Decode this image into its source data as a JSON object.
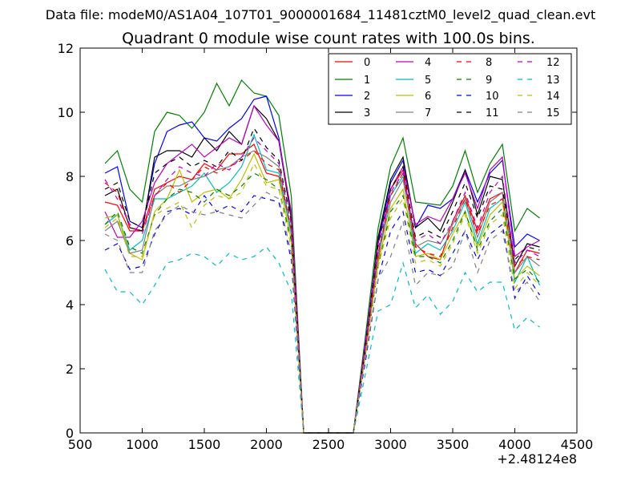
{
  "suptitle": "Data file: modeM0/AS1A04_107T01_9000001684_11481cztM0_level2_quad_clean.evt",
  "chart_data": {
    "type": "line",
    "title": "Quadrant 0 module wise count rates with 100.0s bins.",
    "xlabel": "",
    "ylabel": "",
    "x_offset_label": "+2.48124e8",
    "xlim": [
      500,
      4500
    ],
    "ylim": [
      0,
      12
    ],
    "xticks": [
      500,
      1000,
      1500,
      2000,
      2500,
      3000,
      3500,
      4000,
      4500
    ],
    "yticks": [
      0,
      2,
      4,
      6,
      8,
      10,
      12
    ],
    "grid": false,
    "legend_position": "top-right",
    "x": [
      700,
      800,
      900,
      1000,
      1100,
      1200,
      1300,
      1400,
      1500,
      1600,
      1700,
      1800,
      1900,
      2000,
      2100,
      2200,
      2300,
      2400,
      2500,
      2600,
      2700,
      2800,
      2900,
      3000,
      3100,
      3200,
      3300,
      3400,
      3500,
      3600,
      3700,
      3800,
      3900,
      4000,
      4100,
      4200
    ],
    "series": [
      {
        "name": "0",
        "color": "#ff0000",
        "dash": "solid",
        "values": [
          7.2,
          7.1,
          6.3,
          6.3,
          7.6,
          7.8,
          8.0,
          7.9,
          8.4,
          8.2,
          8.7,
          8.7,
          9.0,
          8.1,
          8.0,
          6.3,
          0,
          0,
          0,
          0,
          0,
          2.6,
          5.4,
          7.6,
          8.2,
          5.9,
          5.5,
          5.4,
          6.6,
          7.4,
          6.3,
          7.3,
          7.5,
          5.0,
          5.7,
          5.6
        ]
      },
      {
        "name": "1",
        "color": "#008000",
        "dash": "solid",
        "values": [
          8.4,
          8.8,
          7.6,
          7.2,
          9.4,
          10.0,
          9.9,
          9.5,
          10.0,
          10.9,
          10.2,
          11.0,
          10.6,
          10.5,
          9.9,
          7.4,
          0,
          0,
          0,
          0,
          0,
          3.1,
          6.4,
          8.3,
          9.2,
          7.2,
          7.15,
          7.1,
          7.7,
          8.8,
          7.5,
          8.4,
          9.0,
          6.3,
          7.0,
          6.7
        ]
      },
      {
        "name": "2",
        "color": "#0000ff",
        "dash": "solid",
        "values": [
          8.1,
          8.3,
          6.6,
          6.4,
          8.4,
          9.4,
          9.6,
          9.7,
          9.2,
          9.1,
          9.5,
          9.8,
          10.4,
          10.5,
          9.2,
          6.8,
          0,
          0,
          0,
          0,
          0,
          2.9,
          6.0,
          7.8,
          8.5,
          6.4,
          7.1,
          7.0,
          7.3,
          8.2,
          7.2,
          8.1,
          8.5,
          5.8,
          6.2,
          6.0
        ]
      },
      {
        "name": "3",
        "color": "#000000",
        "dash": "solid",
        "values": [
          7.4,
          7.6,
          6.4,
          6.3,
          8.6,
          8.8,
          8.8,
          8.6,
          9.2,
          8.8,
          9.4,
          9.0,
          10.2,
          9.8,
          9.1,
          6.7,
          0,
          0,
          0,
          0,
          0,
          2.8,
          6.1,
          7.9,
          8.6,
          6.4,
          6.7,
          6.3,
          7.2,
          8.2,
          6.8,
          8.0,
          7.9,
          5.2,
          5.9,
          5.8
        ]
      },
      {
        "name": "4",
        "color": "#bf00bf",
        "dash": "solid",
        "values": [
          6.9,
          6.1,
          6.1,
          6.6,
          7.8,
          8.4,
          8.7,
          9.0,
          8.6,
          8.9,
          9.2,
          9.0,
          10.2,
          9.6,
          9.1,
          6.9,
          0,
          0,
          0,
          0,
          0,
          2.9,
          5.9,
          7.6,
          8.3,
          6.5,
          6.75,
          6.6,
          7.3,
          8.1,
          7.0,
          8.2,
          8.6,
          5.5,
          5.8,
          6.0
        ]
      },
      {
        "name": "5",
        "color": "#00bfbf",
        "dash": "solid",
        "values": [
          6.5,
          6.8,
          5.7,
          6.0,
          7.3,
          7.3,
          7.5,
          7.7,
          8.1,
          7.5,
          7.8,
          8.3,
          9.3,
          8.2,
          8.1,
          6.2,
          0,
          0,
          0,
          0,
          0,
          2.7,
          5.6,
          7.4,
          8.0,
          5.6,
          5.9,
          5.7,
          6.3,
          7.2,
          5.9,
          7.0,
          7.3,
          4.7,
          5.5,
          4.6
        ]
      },
      {
        "name": "6",
        "color": "#bfbf00",
        "dash": "solid",
        "values": [
          6.7,
          6.8,
          5.6,
          5.4,
          6.9,
          7.3,
          8.2,
          7.2,
          7.5,
          7.6,
          7.3,
          7.9,
          8.7,
          7.8,
          7.9,
          6.0,
          0,
          0,
          0,
          0,
          0,
          2.6,
          5.3,
          7.0,
          7.6,
          5.5,
          5.6,
          5.4,
          6.2,
          6.9,
          5.8,
          6.8,
          7.2,
          4.8,
          5.2,
          4.9
        ]
      },
      {
        "name": "7",
        "color": "#808080",
        "dash": "solid",
        "values": [
          6.3,
          6.6,
          5.6,
          5.7,
          7.4,
          7.7,
          7.7,
          7.9,
          8.0,
          8.2,
          8.3,
          8.6,
          8.8,
          8.6,
          8.3,
          6.3,
          0,
          0,
          0,
          0,
          0,
          2.7,
          5.5,
          7.2,
          7.9,
          5.8,
          6.0,
          5.9,
          6.5,
          7.3,
          6.1,
          7.2,
          7.5,
          5.0,
          5.5,
          5.2
        ]
      },
      {
        "name": "8",
        "color": "#ff0000",
        "dash": "dashed",
        "values": [
          7.8,
          7.5,
          6.4,
          6.3,
          7.4,
          7.8,
          7.5,
          7.9,
          8.3,
          8.1,
          8.3,
          8.5,
          8.8,
          8.4,
          8.2,
          6.3,
          0,
          0,
          0,
          0,
          0,
          2.7,
          5.6,
          7.4,
          8.1,
          5.8,
          5.6,
          5.5,
          6.4,
          7.3,
          6.2,
          7.1,
          7.3,
          5.2,
          5.5,
          5.4
        ]
      },
      {
        "name": "9",
        "color": "#008000",
        "dash": "dashed",
        "values": [
          6.5,
          6.9,
          5.8,
          5.6,
          6.8,
          7.3,
          7.6,
          7.5,
          7.2,
          7.6,
          7.4,
          7.7,
          8.1,
          7.9,
          7.6,
          6.0,
          0,
          0,
          0,
          0,
          0,
          2.5,
          5.2,
          6.9,
          7.4,
          5.5,
          5.5,
          5.3,
          6.0,
          6.9,
          5.7,
          6.6,
          7.0,
          4.8,
          5.1,
          4.7
        ]
      },
      {
        "name": "10",
        "color": "#0000ff",
        "dash": "dashed",
        "values": [
          5.7,
          5.9,
          5.1,
          5.2,
          6.2,
          6.9,
          7.0,
          6.8,
          7.4,
          6.9,
          7.1,
          6.9,
          7.4,
          7.3,
          7.2,
          5.4,
          0,
          0,
          0,
          0,
          0,
          2.3,
          4.8,
          6.3,
          6.9,
          5.0,
          5.1,
          4.9,
          5.6,
          6.3,
          5.4,
          6.2,
          6.5,
          4.2,
          4.9,
          4.3
        ]
      },
      {
        "name": "11",
        "color": "#000000",
        "dash": "dashed",
        "values": [
          7.6,
          7.8,
          6.6,
          6.4,
          8.1,
          8.4,
          8.6,
          8.3,
          8.5,
          8.3,
          8.8,
          8.5,
          9.5,
          8.9,
          8.5,
          6.6,
          0,
          0,
          0,
          0,
          0,
          2.8,
          5.9,
          7.6,
          8.3,
          6.1,
          6.3,
          6.1,
          6.9,
          7.8,
          6.7,
          7.7,
          7.6,
          5.4,
          5.8,
          5.7
        ]
      },
      {
        "name": "12",
        "color": "#bf00bf",
        "dash": "dashed",
        "values": [
          7.9,
          7.3,
          6.5,
          6.2,
          7.4,
          7.9,
          8.3,
          8.1,
          8.0,
          8.4,
          8.2,
          8.6,
          9.2,
          8.8,
          8.4,
          6.5,
          0,
          0,
          0,
          0,
          0,
          2.7,
          5.7,
          7.5,
          8.1,
          6.0,
          6.2,
          5.9,
          6.6,
          7.5,
          6.4,
          7.5,
          8.0,
          5.3,
          5.7,
          5.5
        ]
      },
      {
        "name": "13",
        "color": "#00bfbf",
        "dash": "dashed",
        "values": [
          5.1,
          4.4,
          4.4,
          4.0,
          4.6,
          5.3,
          5.4,
          5.6,
          5.5,
          5.2,
          5.6,
          5.4,
          5.5,
          5.8,
          5.3,
          4.4,
          0,
          0,
          0,
          0,
          0,
          1.9,
          3.8,
          4.0,
          5.3,
          3.9,
          4.3,
          3.7,
          4.1,
          5.0,
          4.4,
          4.7,
          4.7,
          3.2,
          3.6,
          3.3
        ]
      },
      {
        "name": "14",
        "color": "#bfbf00",
        "dash": "dashed",
        "values": [
          6.4,
          6.7,
          5.5,
          5.5,
          6.8,
          7.0,
          7.2,
          6.4,
          7.1,
          7.4,
          7.3,
          7.5,
          8.4,
          7.7,
          7.6,
          5.8,
          0,
          0,
          0,
          0,
          0,
          2.5,
          5.2,
          6.7,
          7.3,
          5.3,
          5.4,
          5.2,
          5.9,
          6.8,
          5.6,
          6.5,
          6.8,
          4.5,
          5.0,
          4.6
        ]
      },
      {
        "name": "15",
        "color": "#808080",
        "dash": "dashed",
        "values": [
          6.2,
          6.0,
          5.0,
          5.0,
          6.3,
          6.8,
          7.1,
          6.9,
          6.8,
          6.9,
          6.8,
          6.7,
          7.1,
          7.5,
          7.3,
          5.6,
          0,
          0,
          0,
          0,
          0,
          2.4,
          4.8,
          5.5,
          6.6,
          4.6,
          5.0,
          4.9,
          5.2,
          6.3,
          5.0,
          6.0,
          6.3,
          4.4,
          4.7,
          4.1
        ]
      }
    ]
  }
}
